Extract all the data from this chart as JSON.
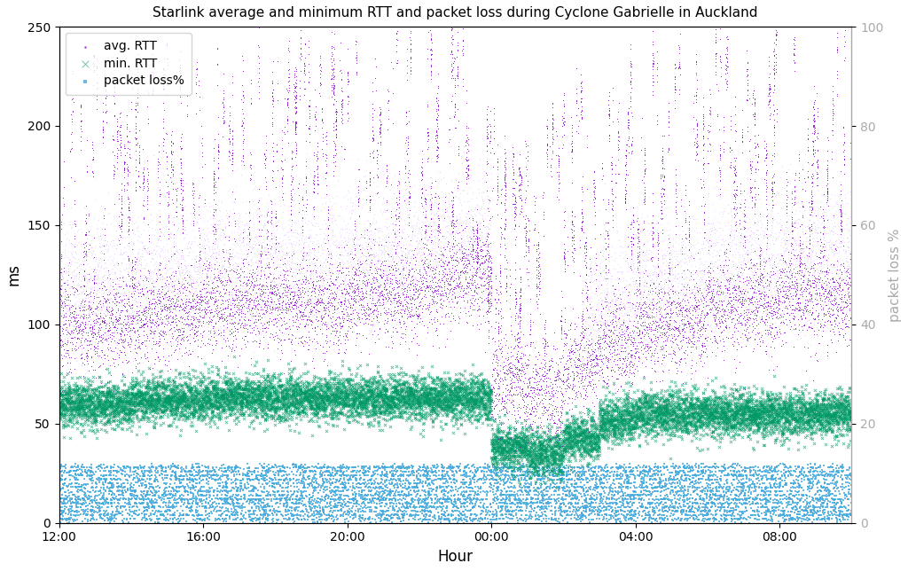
{
  "title": "Starlink average and minimum RTT and packet loss during Cyclone Gabrielle in Auckland",
  "xlabel": "Hour",
  "ylabel_left": "ms",
  "ylabel_right": "packet loss %",
  "ylim_left": [
    0,
    250
  ],
  "ylim_right": [
    0,
    100
  ],
  "x_tick_labels": [
    "12:00",
    "16:00",
    "20:00",
    "00:00",
    "04:00",
    "08:00"
  ],
  "avg_rtt_color_dark": "#8800cc",
  "avg_rtt_color_light": "#cc88ff",
  "min_rtt_color": "#009966",
  "packet_loss_color": "#44aadd",
  "legend_labels": [
    "avg. RTT",
    "min. RTT",
    "packet loss%"
  ],
  "seed": 123,
  "background_color": "#ffffff",
  "total_minutes": 1320,
  "n_samples_per_minute": 6
}
